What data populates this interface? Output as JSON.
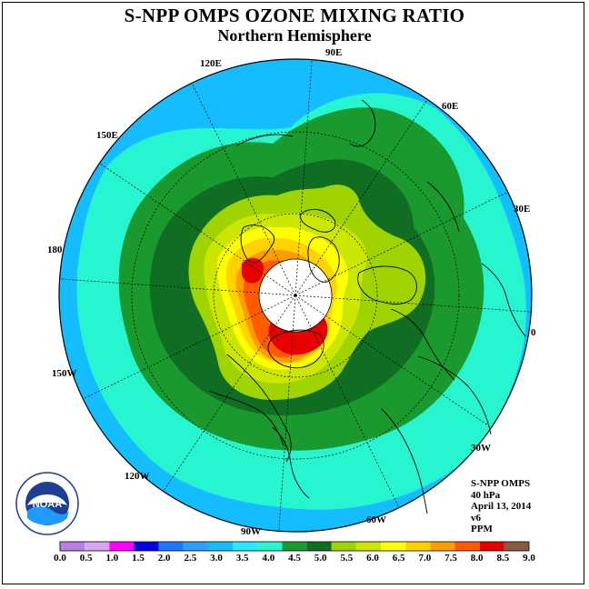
{
  "title": "S-NPP OMPS OZONE MIXING RATIO",
  "subtitle": "Northern Hemisphere",
  "longitude_labels": [
    {
      "id": "90e",
      "text": "90E"
    },
    {
      "id": "60e",
      "text": "60E"
    },
    {
      "id": "30e",
      "text": "30E"
    },
    {
      "id": "0",
      "text": "0"
    },
    {
      "id": "30w",
      "text": "30W"
    },
    {
      "id": "60w",
      "text": "60W"
    },
    {
      "id": "90w",
      "text": "90W"
    },
    {
      "id": "120w",
      "text": "120W"
    },
    {
      "id": "150w",
      "text": "150W"
    },
    {
      "id": "180",
      "text": "180"
    },
    {
      "id": "150e",
      "text": "150E"
    },
    {
      "id": "120e",
      "text": "120E"
    }
  ],
  "info": {
    "instrument": "S-NPP OMPS",
    "level": "40 hPa",
    "date": "April 13, 2014",
    "version": "v6",
    "units": "PPM"
  },
  "logo": {
    "text": "NOAA",
    "icon": "noaa-logo-icon"
  },
  "colorbar": {
    "ticks": [
      "0.0",
      "0.5",
      "1.0",
      "1.5",
      "2.0",
      "2.5",
      "3.0",
      "3.5",
      "4.0",
      "4.5",
      "5.0",
      "5.5",
      "6.0",
      "6.5",
      "7.0",
      "7.5",
      "8.0",
      "8.5",
      "9.0"
    ],
    "colors": [
      "#b87fe8",
      "#d6a8f0",
      "#ff00ff",
      "#0000e8",
      "#1e78ff",
      "#2f9cff",
      "#13bdff",
      "#2ae8ff",
      "#27f5cf",
      "#1a9a2e",
      "#0f6e22",
      "#9fd400",
      "#cbe600",
      "#ffff00",
      "#ffd200",
      "#ff9c00",
      "#ff5a00",
      "#e80000",
      "#8a5a3c"
    ]
  },
  "chart_data": {
    "type": "heatmap",
    "title": "S-NPP OMPS OZONE MIXING RATIO",
    "subtitle": "Northern Hemisphere",
    "projection": "north polar stereographic",
    "parameter": "ozone mixing ratio",
    "units": "PPM",
    "level": "40 hPa",
    "date": "April 13, 2014",
    "color_scale_range": [
      0.0,
      9.0
    ],
    "color_scale_step": 0.5,
    "approx_regions": [
      {
        "region": "equatorward edge",
        "range_ppm": [
          3.0,
          3.5
        ]
      },
      {
        "region": "subtropics",
        "range_ppm": [
          3.5,
          4.0
        ]
      },
      {
        "region": "midlatitude band",
        "range_ppm": [
          4.0,
          5.0
        ]
      },
      {
        "region": "polar ring",
        "range_ppm": [
          5.0,
          7.0
        ]
      },
      {
        "region": "maximum near Greenland / Canadian Arctic",
        "range_ppm": [
          7.5,
          8.5
        ]
      },
      {
        "region": "pole",
        "range_ppm": null
      }
    ]
  }
}
